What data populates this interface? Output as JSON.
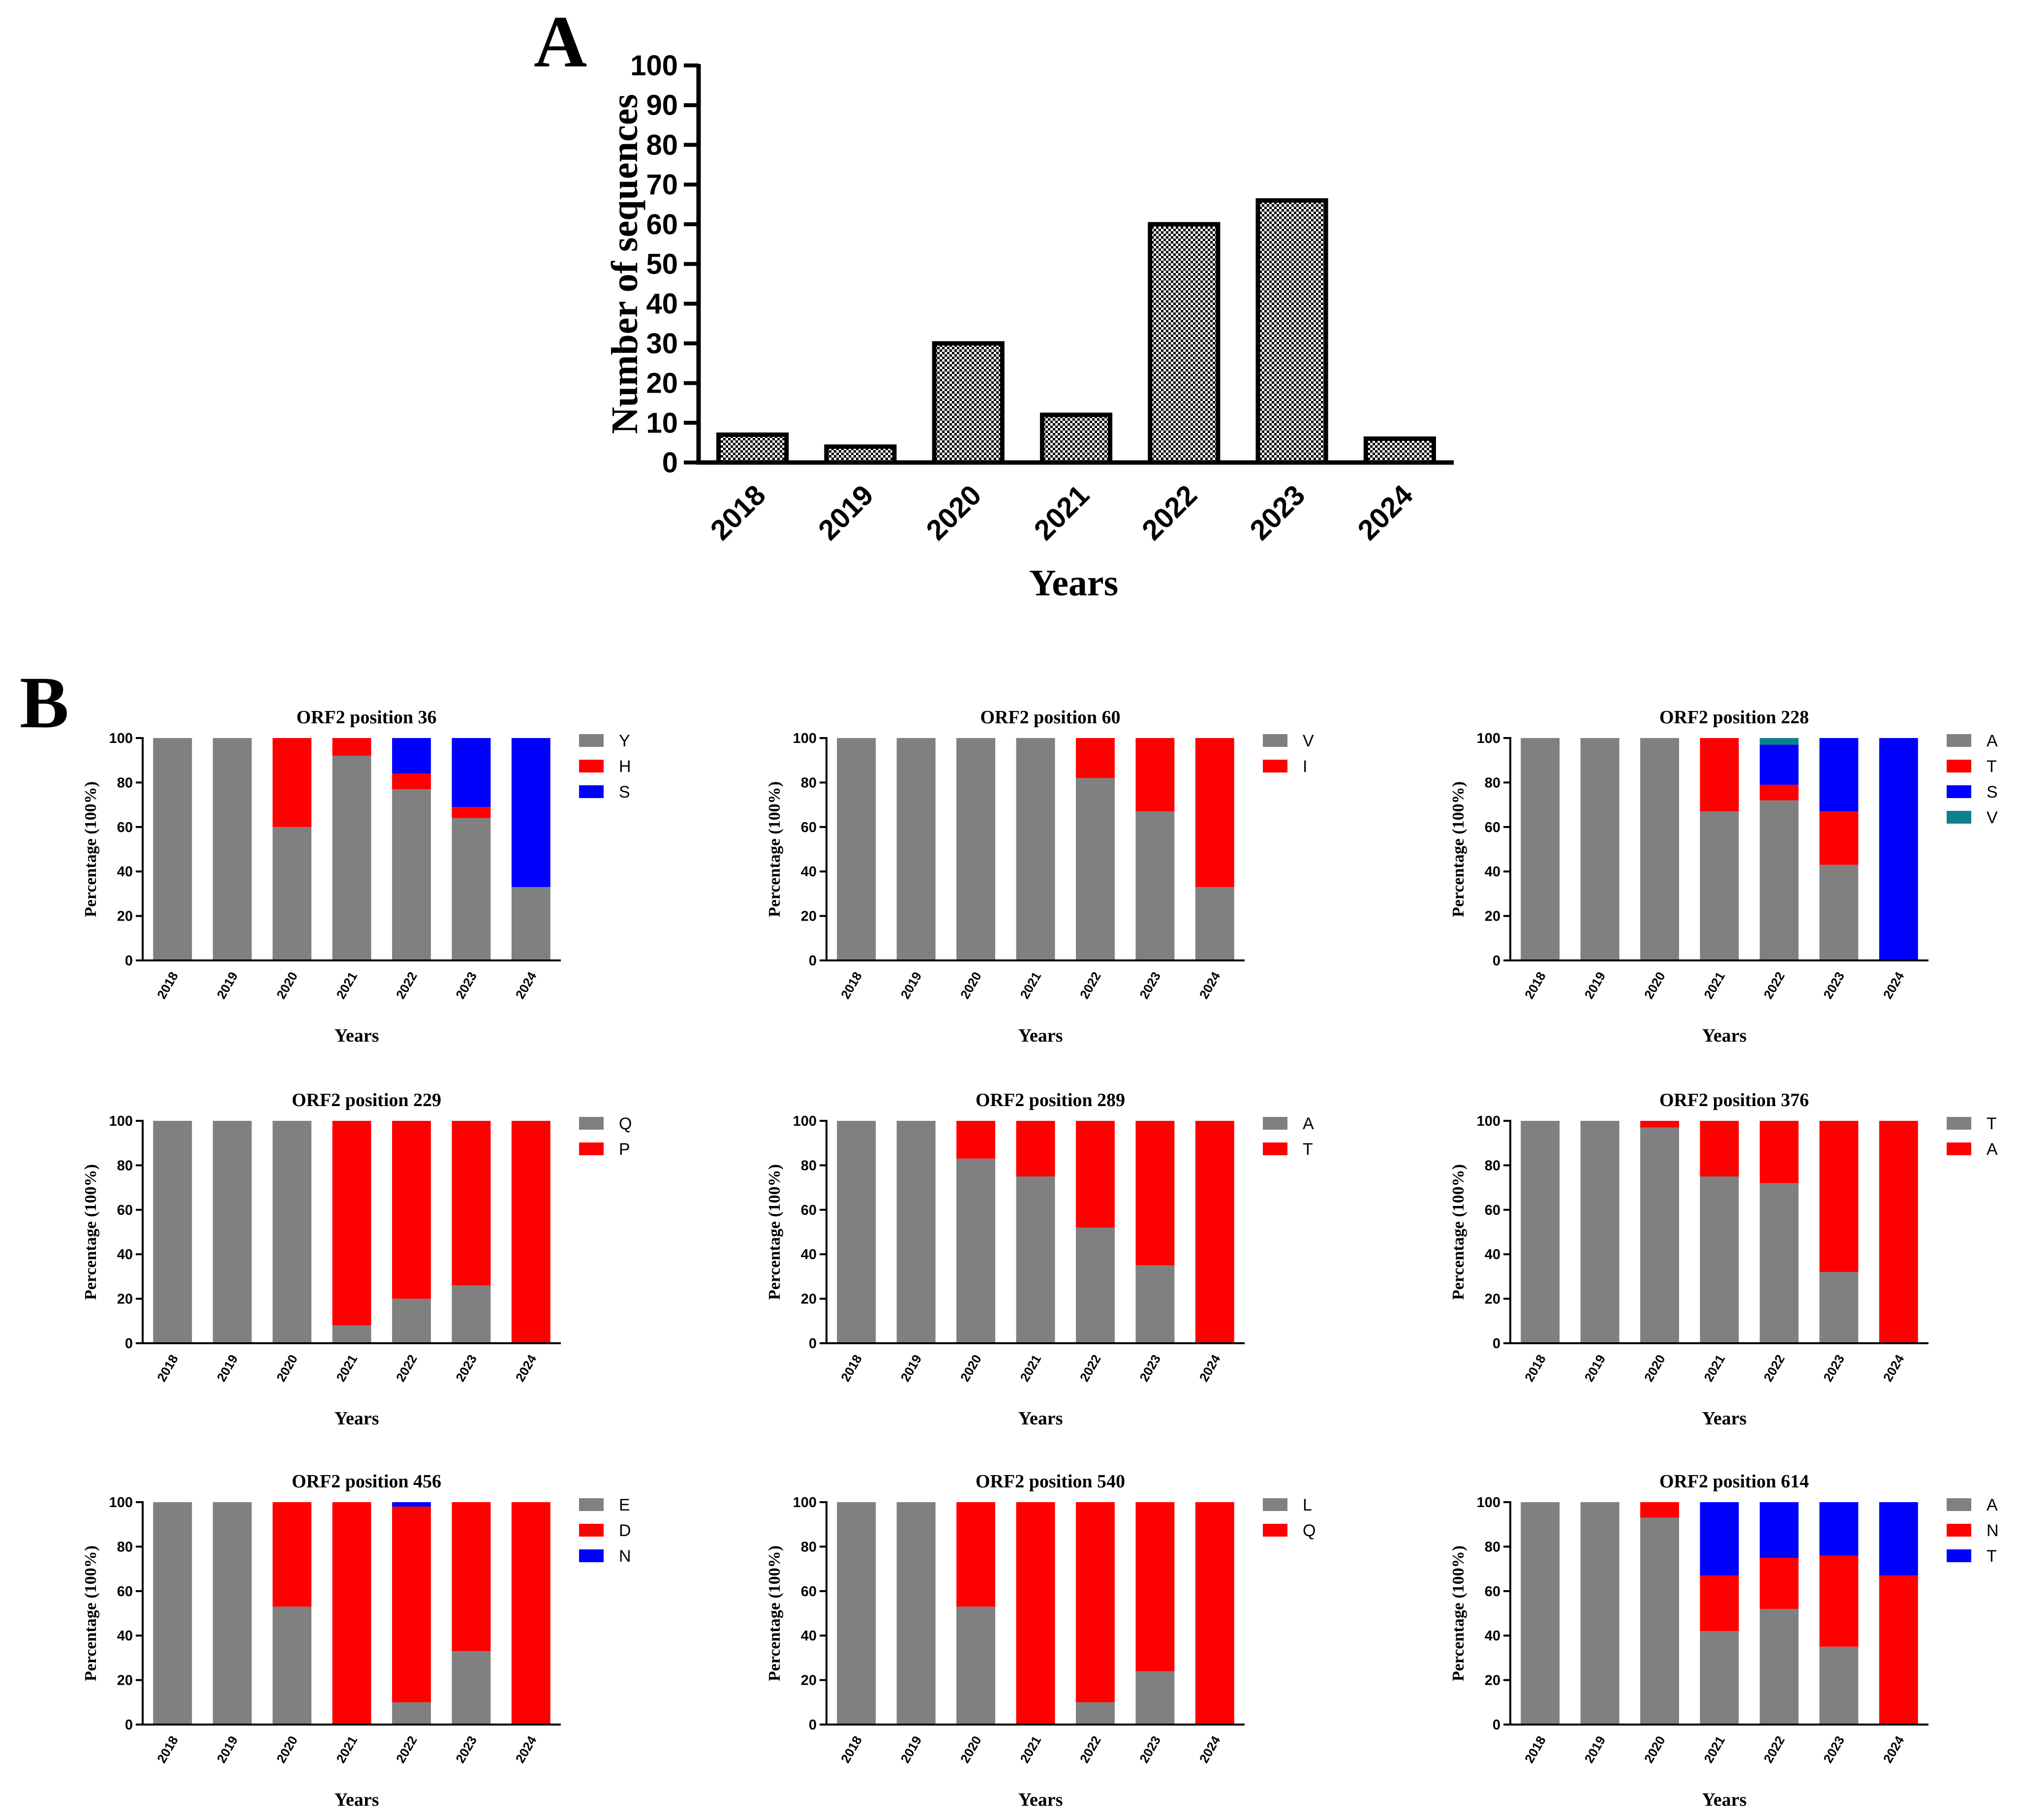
{
  "colors": {
    "gray": "#808080",
    "red": "#ff0000",
    "blue": "#0000ff",
    "teal": "#0e7f8d",
    "border": "#000000"
  },
  "panel_a_letter": "A",
  "panel_b_letter": "B",
  "chart_data": [
    {
      "id": "A",
      "type": "bar",
      "title": "",
      "xlabel": "Years",
      "ylabel": "Number of sequences",
      "ylim": [
        0,
        100
      ],
      "yticks": [
        0,
        10,
        20,
        30,
        40,
        50,
        60,
        70,
        80,
        90,
        100
      ],
      "categories": [
        "2018",
        "2019",
        "2020",
        "2021",
        "2022",
        "2023",
        "2024"
      ],
      "values": [
        7,
        4,
        30,
        12,
        60,
        66,
        6
      ],
      "pattern": "checkered"
    },
    {
      "id": "B1",
      "type": "stacked-bar",
      "title": "ORF2 position 36",
      "xlabel": "Years",
      "ylabel": "Percentage (100%)",
      "ylim": [
        0,
        100
      ],
      "yticks": [
        0,
        20,
        40,
        60,
        80,
        100
      ],
      "categories": [
        "2018",
        "2019",
        "2020",
        "2021",
        "2022",
        "2023",
        "2024"
      ],
      "series": [
        {
          "name": "Y",
          "color": "#808080",
          "values": [
            100,
            100,
            60,
            92,
            77,
            64,
            33
          ]
        },
        {
          "name": "H",
          "color": "#ff0000",
          "values": [
            0,
            0,
            40,
            8,
            7,
            5,
            0
          ]
        },
        {
          "name": "S",
          "color": "#0000ff",
          "values": [
            0,
            0,
            0,
            0,
            16,
            31,
            67
          ]
        }
      ]
    },
    {
      "id": "B2",
      "type": "stacked-bar",
      "title": "ORF2 position 60",
      "xlabel": "Years",
      "ylabel": "Percentage (100%)",
      "ylim": [
        0,
        100
      ],
      "yticks": [
        0,
        20,
        40,
        60,
        80,
        100
      ],
      "categories": [
        "2018",
        "2019",
        "2020",
        "2021",
        "2022",
        "2023",
        "2024"
      ],
      "series": [
        {
          "name": "V",
          "color": "#808080",
          "values": [
            100,
            100,
            100,
            100,
            82,
            67,
            33
          ]
        },
        {
          "name": "I",
          "color": "#ff0000",
          "values": [
            0,
            0,
            0,
            0,
            18,
            33,
            67
          ]
        }
      ]
    },
    {
      "id": "B3",
      "type": "stacked-bar",
      "title": "ORF2 position 228",
      "xlabel": "Years",
      "ylabel": "Percentage (100%)",
      "ylim": [
        0,
        100
      ],
      "yticks": [
        0,
        20,
        40,
        60,
        80,
        100
      ],
      "categories": [
        "2018",
        "2019",
        "2020",
        "2021",
        "2022",
        "2023",
        "2024"
      ],
      "series": [
        {
          "name": "A",
          "color": "#808080",
          "values": [
            100,
            100,
            100,
            67,
            72,
            43,
            0
          ]
        },
        {
          "name": "T",
          "color": "#ff0000",
          "values": [
            0,
            0,
            0,
            33,
            7,
            24,
            0
          ]
        },
        {
          "name": "S",
          "color": "#0000ff",
          "values": [
            0,
            0,
            0,
            0,
            18,
            33,
            100
          ]
        },
        {
          "name": "V",
          "color": "#0e7f8d",
          "values": [
            0,
            0,
            0,
            0,
            3,
            0,
            0
          ]
        }
      ]
    },
    {
      "id": "B4",
      "type": "stacked-bar",
      "title": "ORF2 position 229",
      "xlabel": "Years",
      "ylabel": "Percentage (100%)",
      "ylim": [
        0,
        100
      ],
      "yticks": [
        0,
        20,
        40,
        60,
        80,
        100
      ],
      "categories": [
        "2018",
        "2019",
        "2020",
        "2021",
        "2022",
        "2023",
        "2024"
      ],
      "series": [
        {
          "name": "Q",
          "color": "#808080",
          "values": [
            100,
            100,
            100,
            8,
            20,
            26,
            0
          ]
        },
        {
          "name": "P",
          "color": "#ff0000",
          "values": [
            0,
            0,
            0,
            92,
            80,
            74,
            100
          ]
        }
      ]
    },
    {
      "id": "B5",
      "type": "stacked-bar",
      "title": "ORF2 position 289",
      "xlabel": "Years",
      "ylabel": "Percentage (100%)",
      "ylim": [
        0,
        100
      ],
      "yticks": [
        0,
        20,
        40,
        60,
        80,
        100
      ],
      "categories": [
        "2018",
        "2019",
        "2020",
        "2021",
        "2022",
        "2023",
        "2024"
      ],
      "series": [
        {
          "name": "A",
          "color": "#808080",
          "values": [
            100,
            100,
            83,
            75,
            52,
            35,
            0
          ]
        },
        {
          "name": "T",
          "color": "#ff0000",
          "values": [
            0,
            0,
            17,
            25,
            48,
            65,
            100
          ]
        }
      ]
    },
    {
      "id": "B6",
      "type": "stacked-bar",
      "title": "ORF2 position 376",
      "xlabel": "Years",
      "ylabel": "Percentage (100%)",
      "ylim": [
        0,
        100
      ],
      "yticks": [
        0,
        20,
        40,
        60,
        80,
        100
      ],
      "categories": [
        "2018",
        "2019",
        "2020",
        "2021",
        "2022",
        "2023",
        "2024"
      ],
      "series": [
        {
          "name": "T",
          "color": "#808080",
          "values": [
            100,
            100,
            97,
            75,
            72,
            32,
            0
          ]
        },
        {
          "name": "A",
          "color": "#ff0000",
          "values": [
            0,
            0,
            3,
            25,
            28,
            68,
            100
          ]
        }
      ]
    },
    {
      "id": "B7",
      "type": "stacked-bar",
      "title": "ORF2 position 456",
      "xlabel": "Years",
      "ylabel": "Percentage (100%)",
      "ylim": [
        0,
        100
      ],
      "yticks": [
        0,
        20,
        40,
        60,
        80,
        100
      ],
      "categories": [
        "2018",
        "2019",
        "2020",
        "2021",
        "2022",
        "2023",
        "2024"
      ],
      "series": [
        {
          "name": "E",
          "color": "#808080",
          "values": [
            100,
            100,
            53,
            0,
            10,
            33,
            0
          ]
        },
        {
          "name": "D",
          "color": "#ff0000",
          "values": [
            0,
            0,
            47,
            100,
            88,
            67,
            100
          ]
        },
        {
          "name": "N",
          "color": "#0000ff",
          "values": [
            0,
            0,
            0,
            0,
            2,
            0,
            0
          ]
        }
      ]
    },
    {
      "id": "B8",
      "type": "stacked-bar",
      "title": "ORF2 position 540",
      "xlabel": "Years",
      "ylabel": "Percentage (100%)",
      "ylim": [
        0,
        100
      ],
      "yticks": [
        0,
        20,
        40,
        60,
        80,
        100
      ],
      "categories": [
        "2018",
        "2019",
        "2020",
        "2021",
        "2022",
        "2023",
        "2024"
      ],
      "series": [
        {
          "name": "L",
          "color": "#808080",
          "values": [
            100,
            100,
            53,
            0,
            10,
            24,
            0
          ]
        },
        {
          "name": "Q",
          "color": "#ff0000",
          "values": [
            0,
            0,
            47,
            100,
            90,
            76,
            100
          ]
        }
      ]
    },
    {
      "id": "B9",
      "type": "stacked-bar",
      "title": "ORF2 position 614",
      "xlabel": "Years",
      "ylabel": "Percentage (100%)",
      "ylim": [
        0,
        100
      ],
      "yticks": [
        0,
        20,
        40,
        60,
        80,
        100
      ],
      "categories": [
        "2018",
        "2019",
        "2020",
        "2021",
        "2022",
        "2023",
        "2024"
      ],
      "series": [
        {
          "name": "A",
          "color": "#808080",
          "values": [
            100,
            100,
            93,
            42,
            52,
            35,
            0
          ]
        },
        {
          "name": "N",
          "color": "#ff0000",
          "values": [
            0,
            0,
            7,
            25,
            23,
            41,
            67
          ]
        },
        {
          "name": "T",
          "color": "#0000ff",
          "values": [
            0,
            0,
            0,
            33,
            25,
            24,
            33
          ]
        }
      ]
    }
  ]
}
